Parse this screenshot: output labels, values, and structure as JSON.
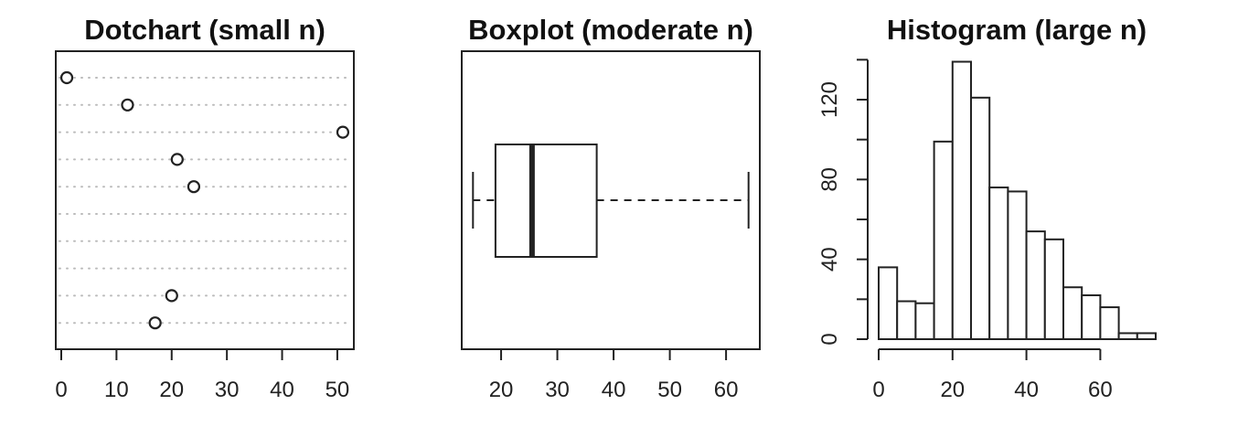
{
  "chart_data": [
    {
      "type": "scatter",
      "subtype": "dotchart",
      "title": "Dotchart (small n)",
      "xlabel": "",
      "ylabel": "",
      "xlim": [
        0,
        52
      ],
      "x_ticks": [
        0,
        10,
        20,
        30,
        40,
        50
      ],
      "rows": 10,
      "points": [
        {
          "row": 1,
          "value": 1
        },
        {
          "row": 2,
          "value": 12
        },
        {
          "row": 3,
          "value": 51
        },
        {
          "row": 4,
          "value": 21
        },
        {
          "row": 5,
          "value": 24
        },
        {
          "row": 9,
          "value": 20
        },
        {
          "row": 10,
          "value": 17
        }
      ],
      "grid": true
    },
    {
      "type": "boxplot",
      "orientation": "horizontal",
      "title": "Boxplot (moderate n)",
      "xlabel": "",
      "ylabel": "",
      "xlim": [
        13,
        66
      ],
      "x_ticks": [
        20,
        30,
        40,
        50,
        60
      ],
      "stats": {
        "min": 15,
        "q1": 19,
        "median": 25.5,
        "q3": 37,
        "max": 64
      }
    },
    {
      "type": "bar",
      "subtype": "histogram",
      "title": "Histogram (large n)",
      "xlabel": "",
      "ylabel": "",
      "x_ticks": [
        0,
        20,
        40,
        60
      ],
      "y_ticks": [
        0,
        40,
        80,
        120
      ],
      "xlim": [
        0,
        75
      ],
      "ylim": [
        0,
        140
      ],
      "bins": [
        {
          "start": 0,
          "end": 5,
          "count": 36
        },
        {
          "start": 5,
          "end": 10,
          "count": 19
        },
        {
          "start": 10,
          "end": 15,
          "count": 18
        },
        {
          "start": 15,
          "end": 20,
          "count": 99
        },
        {
          "start": 20,
          "end": 25,
          "count": 139
        },
        {
          "start": 25,
          "end": 30,
          "count": 121
        },
        {
          "start": 30,
          "end": 35,
          "count": 76
        },
        {
          "start": 35,
          "end": 40,
          "count": 74
        },
        {
          "start": 40,
          "end": 45,
          "count": 54
        },
        {
          "start": 45,
          "end": 50,
          "count": 50
        },
        {
          "start": 50,
          "end": 55,
          "count": 26
        },
        {
          "start": 55,
          "end": 60,
          "count": 22
        },
        {
          "start": 60,
          "end": 65,
          "count": 16
        },
        {
          "start": 65,
          "end": 70,
          "count": 3
        },
        {
          "start": 70,
          "end": 75,
          "count": 3
        }
      ]
    }
  ]
}
